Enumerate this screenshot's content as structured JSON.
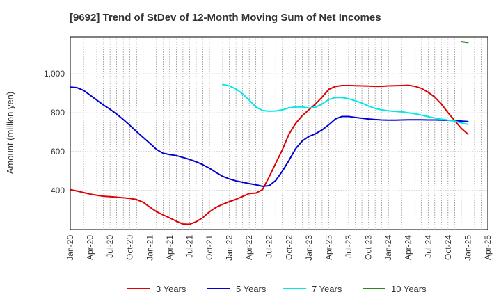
{
  "chart_data": {
    "type": "line",
    "title": "[9692]  Trend of StDev of 12-Month Moving Sum of Net Incomes",
    "ylabel": "Amount (million yen)",
    "xlabel": "",
    "ylim": [
      200,
      1190
    ],
    "yticks": [
      400,
      600,
      800,
      1000
    ],
    "ytick_labels": [
      "400",
      "600",
      "800",
      "1,000"
    ],
    "xlim": [
      "2020-01",
      "2025-04"
    ],
    "xtick_labels": [
      "Jan-20",
      "Apr-20",
      "Jul-20",
      "Oct-20",
      "Jan-21",
      "Apr-21",
      "Jul-21",
      "Oct-21",
      "Jan-22",
      "Apr-22",
      "Jul-22",
      "Oct-22",
      "Jan-23",
      "Apr-23",
      "Jul-23",
      "Oct-23",
      "Jan-24",
      "Apr-24",
      "Jul-24",
      "Oct-24",
      "Jan-25",
      "Apr-25"
    ],
    "grid": true,
    "legend_position": "bottom",
    "series": [
      {
        "name": "3 Years",
        "color": "#e00000",
        "points": [
          [
            "2020-01",
            405
          ],
          [
            "2020-02",
            398
          ],
          [
            "2020-03",
            390
          ],
          [
            "2020-04",
            382
          ],
          [
            "2020-05",
            376
          ],
          [
            "2020-06",
            371
          ],
          [
            "2020-07",
            369
          ],
          [
            "2020-08",
            366
          ],
          [
            "2020-09",
            363
          ],
          [
            "2020-10",
            360
          ],
          [
            "2020-11",
            354
          ],
          [
            "2020-12",
            340
          ],
          [
            "2021-01",
            315
          ],
          [
            "2021-02",
            292
          ],
          [
            "2021-03",
            275
          ],
          [
            "2021-04",
            260
          ],
          [
            "2021-05",
            243
          ],
          [
            "2021-06",
            228
          ],
          [
            "2021-07",
            227
          ],
          [
            "2021-08",
            240
          ],
          [
            "2021-09",
            261
          ],
          [
            "2021-10",
            291
          ],
          [
            "2021-11",
            314
          ],
          [
            "2021-12",
            330
          ],
          [
            "2022-01",
            343
          ],
          [
            "2022-02",
            355
          ],
          [
            "2022-03",
            370
          ],
          [
            "2022-04",
            385
          ],
          [
            "2022-05",
            387
          ],
          [
            "2022-06",
            405
          ],
          [
            "2022-07",
            470
          ],
          [
            "2022-08",
            540
          ],
          [
            "2022-09",
            610
          ],
          [
            "2022-10",
            690
          ],
          [
            "2022-11",
            745
          ],
          [
            "2022-12",
            785
          ],
          [
            "2023-01",
            815
          ],
          [
            "2023-02",
            845
          ],
          [
            "2023-03",
            880
          ],
          [
            "2023-04",
            920
          ],
          [
            "2023-05",
            935
          ],
          [
            "2023-06",
            940
          ],
          [
            "2023-07",
            940
          ],
          [
            "2023-08",
            939
          ],
          [
            "2023-09",
            938
          ],
          [
            "2023-10",
            937
          ],
          [
            "2023-11",
            936
          ],
          [
            "2023-12",
            936
          ],
          [
            "2024-01",
            938
          ],
          [
            "2024-02",
            939
          ],
          [
            "2024-03",
            940
          ],
          [
            "2024-04",
            941
          ],
          [
            "2024-05",
            936
          ],
          [
            "2024-06",
            925
          ],
          [
            "2024-07",
            905
          ],
          [
            "2024-08",
            880
          ],
          [
            "2024-09",
            845
          ],
          [
            "2024-10",
            800
          ],
          [
            "2024-11",
            760
          ],
          [
            "2024-12",
            720
          ],
          [
            "2025-01",
            690
          ]
        ]
      },
      {
        "name": "5 Years",
        "color": "#0000d0",
        "points": [
          [
            "2020-01",
            932
          ],
          [
            "2020-02",
            929
          ],
          [
            "2020-03",
            915
          ],
          [
            "2020-04",
            890
          ],
          [
            "2020-05",
            865
          ],
          [
            "2020-06",
            840
          ],
          [
            "2020-07",
            818
          ],
          [
            "2020-08",
            793
          ],
          [
            "2020-09",
            765
          ],
          [
            "2020-10",
            735
          ],
          [
            "2020-11",
            703
          ],
          [
            "2020-12",
            673
          ],
          [
            "2021-01",
            643
          ],
          [
            "2021-02",
            612
          ],
          [
            "2021-03",
            592
          ],
          [
            "2021-04",
            585
          ],
          [
            "2021-05",
            580
          ],
          [
            "2021-06",
            570
          ],
          [
            "2021-07",
            560
          ],
          [
            "2021-08",
            548
          ],
          [
            "2021-09",
            533
          ],
          [
            "2021-10",
            515
          ],
          [
            "2021-11",
            493
          ],
          [
            "2021-12",
            473
          ],
          [
            "2022-01",
            460
          ],
          [
            "2022-02",
            450
          ],
          [
            "2022-03",
            443
          ],
          [
            "2022-04",
            436
          ],
          [
            "2022-05",
            430
          ],
          [
            "2022-06",
            422
          ],
          [
            "2022-07",
            425
          ],
          [
            "2022-08",
            452
          ],
          [
            "2022-09",
            500
          ],
          [
            "2022-10",
            555
          ],
          [
            "2022-11",
            615
          ],
          [
            "2022-12",
            655
          ],
          [
            "2023-01",
            678
          ],
          [
            "2023-02",
            692
          ],
          [
            "2023-03",
            712
          ],
          [
            "2023-04",
            738
          ],
          [
            "2023-05",
            768
          ],
          [
            "2023-06",
            781
          ],
          [
            "2023-07",
            781
          ],
          [
            "2023-08",
            776
          ],
          [
            "2023-09",
            772
          ],
          [
            "2023-10",
            768
          ],
          [
            "2023-11",
            765
          ],
          [
            "2023-12",
            763
          ],
          [
            "2024-01",
            762
          ],
          [
            "2024-02",
            762
          ],
          [
            "2024-03",
            763
          ],
          [
            "2024-04",
            764
          ],
          [
            "2024-05",
            764
          ],
          [
            "2024-06",
            764
          ],
          [
            "2024-07",
            763
          ],
          [
            "2024-08",
            763
          ],
          [
            "2024-09",
            762
          ],
          [
            "2024-10",
            761
          ],
          [
            "2024-11",
            759
          ],
          [
            "2024-12",
            757
          ],
          [
            "2025-01",
            755
          ]
        ]
      },
      {
        "name": "7 Years",
        "color": "#00e8e8",
        "points": [
          [
            "2021-12",
            945
          ],
          [
            "2022-01",
            938
          ],
          [
            "2022-02",
            922
          ],
          [
            "2022-03",
            897
          ],
          [
            "2022-04",
            865
          ],
          [
            "2022-05",
            830
          ],
          [
            "2022-06",
            812
          ],
          [
            "2022-07",
            808
          ],
          [
            "2022-08",
            809
          ],
          [
            "2022-09",
            815
          ],
          [
            "2022-10",
            825
          ],
          [
            "2022-11",
            830
          ],
          [
            "2022-12",
            830
          ],
          [
            "2023-01",
            824
          ],
          [
            "2023-02",
            828
          ],
          [
            "2023-03",
            845
          ],
          [
            "2023-04",
            868
          ],
          [
            "2023-05",
            878
          ],
          [
            "2023-06",
            878
          ],
          [
            "2023-07",
            872
          ],
          [
            "2023-08",
            862
          ],
          [
            "2023-09",
            850
          ],
          [
            "2023-10",
            835
          ],
          [
            "2023-11",
            822
          ],
          [
            "2023-12",
            815
          ],
          [
            "2024-01",
            810
          ],
          [
            "2024-02",
            807
          ],
          [
            "2024-03",
            805
          ],
          [
            "2024-04",
            800
          ],
          [
            "2024-05",
            795
          ],
          [
            "2024-06",
            788
          ],
          [
            "2024-07",
            780
          ],
          [
            "2024-08",
            773
          ],
          [
            "2024-09",
            767
          ],
          [
            "2024-10",
            762
          ],
          [
            "2024-11",
            757
          ],
          [
            "2024-12",
            748
          ],
          [
            "2025-01",
            740
          ]
        ]
      },
      {
        "name": "10 Years",
        "color": "#238b23",
        "points": [
          [
            "2024-12",
            1165
          ],
          [
            "2025-01",
            1160
          ]
        ]
      }
    ]
  }
}
